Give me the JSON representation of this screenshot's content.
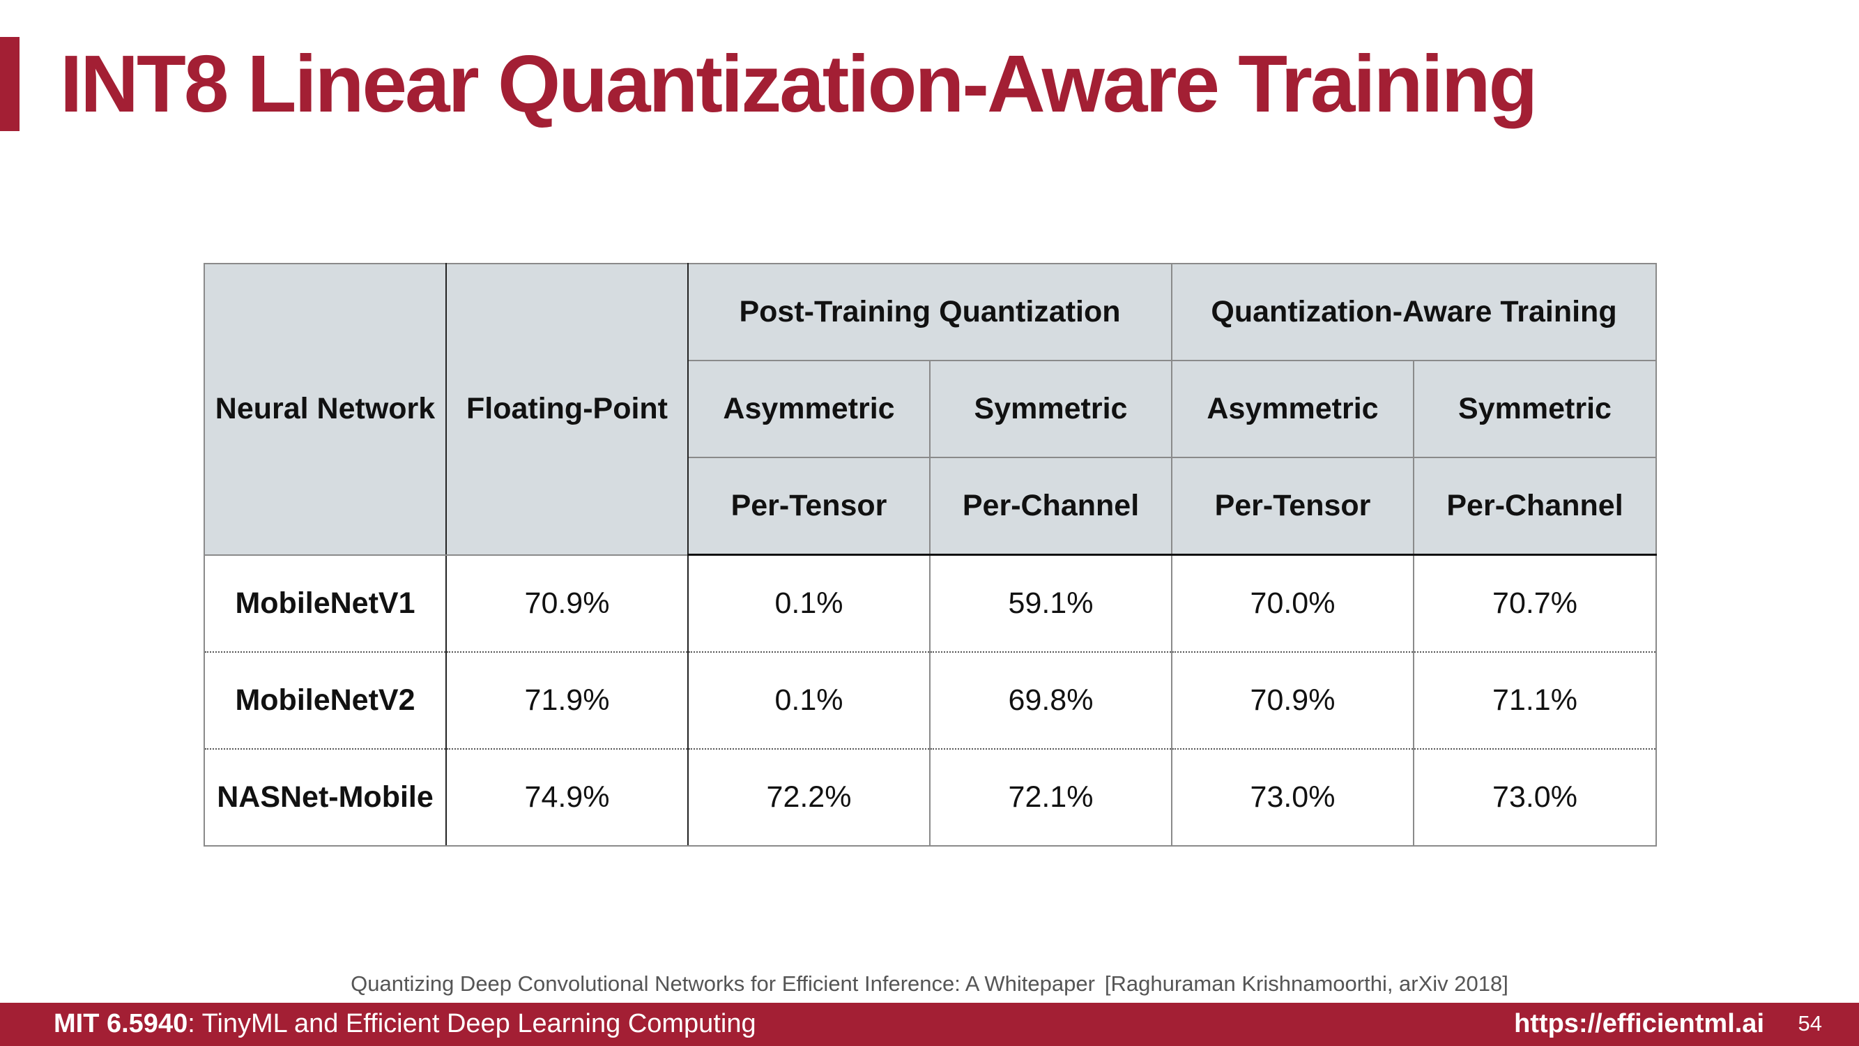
{
  "slide": {
    "title": "INT8 Linear Quantization-Aware Training",
    "accent_color": "#a31f34"
  },
  "table": {
    "col_neural_network": "Neural Network",
    "col_floating_point": "Floating-Point",
    "group_ptq": "Post-Training Quantization",
    "group_qat": "Quantization-Aware Training",
    "asymmetric": "Asymmetric",
    "symmetric": "Symmetric",
    "per_tensor": "Per-Tensor",
    "per_channel": "Per-Channel",
    "rows": [
      {
        "name": "MobileNetV1",
        "fp": "70.9%",
        "ptq_asym": "0.1%",
        "ptq_sym": "59.1%",
        "qat_asym": "70.0%",
        "qat_sym": "70.7%"
      },
      {
        "name": "MobileNetV2",
        "fp": "71.9%",
        "ptq_asym": "0.1%",
        "ptq_sym": "69.8%",
        "qat_asym": "70.9%",
        "qat_sym": "71.1%"
      },
      {
        "name": "NASNet-Mobile",
        "fp": "74.9%",
        "ptq_asym": "72.2%",
        "ptq_sym": "72.1%",
        "qat_asym": "73.0%",
        "qat_sym": "73.0%"
      }
    ]
  },
  "citation": {
    "paper": "Quantizing Deep Convolutional Networks for Efficient Inference: A Whitepaper",
    "ref": "[Raghuraman Krishnamoorthi, arXiv 2018]"
  },
  "footer": {
    "course_code": "MIT 6.5940",
    "course_name": ": TinyML and Efficient Deep Learning Computing",
    "url": "https://efficientml.ai",
    "page": "54"
  }
}
